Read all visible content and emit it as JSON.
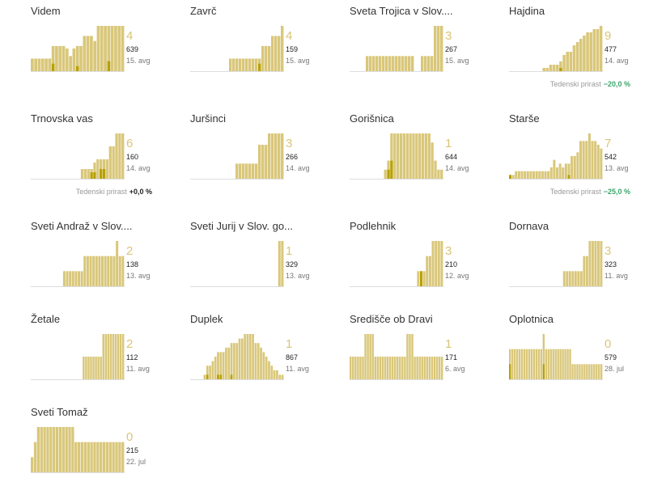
{
  "colors": {
    "bar": "#d9c77a",
    "barDark": "#b8a000",
    "axis": "#dddddd",
    "bigNumber": "#d9c57a",
    "negative": "#3aa66b"
  },
  "chart_data": [
    {
      "type": "bar",
      "title": "Videm",
      "new_cases": "4",
      "active": "639",
      "date": "15. avg",
      "values": [
        5,
        5,
        5,
        5,
        5,
        5,
        10,
        10,
        10,
        10,
        9,
        6,
        9,
        10,
        10,
        14,
        14,
        14,
        12,
        18,
        18,
        18,
        18,
        18,
        18,
        18,
        18
      ],
      "dark_values": [
        0,
        0,
        0,
        0,
        0,
        0,
        3,
        0,
        0,
        0,
        0,
        0,
        0,
        2,
        0,
        0,
        0,
        0,
        0,
        0,
        0,
        0,
        4,
        0,
        0,
        0,
        0
      ]
    },
    {
      "type": "bar",
      "title": "Zavrč",
      "new_cases": "4",
      "active": "159",
      "date": "15. avg",
      "values": [
        0,
        0,
        0,
        0,
        0,
        0,
        0,
        0,
        0,
        0,
        0,
        0,
        5,
        5,
        5,
        5,
        5,
        5,
        5,
        5,
        5,
        5,
        10,
        10,
        10,
        14,
        14,
        14,
        18
      ],
      "dark_values": [
        0,
        0,
        0,
        0,
        0,
        0,
        0,
        0,
        0,
        0,
        0,
        0,
        0,
        0,
        0,
        0,
        0,
        0,
        0,
        0,
        0,
        3,
        0,
        0,
        0,
        0,
        0,
        0,
        0
      ]
    },
    {
      "type": "bar",
      "title": "Sveta Trojica v Slov....",
      "new_cases": "3",
      "active": "267",
      "date": "15. avg",
      "values": [
        0,
        0,
        0,
        0,
        0,
        6,
        6,
        6,
        6,
        6,
        6,
        6,
        6,
        6,
        6,
        6,
        6,
        6,
        6,
        6,
        0,
        0,
        6,
        6,
        6,
        6,
        18,
        18,
        18
      ],
      "dark_values": [
        0,
        0,
        0,
        0,
        0,
        0,
        0,
        0,
        0,
        0,
        0,
        0,
        0,
        0,
        0,
        0,
        0,
        0,
        0,
        0,
        0,
        0,
        0,
        0,
        0,
        0,
        0,
        0,
        0
      ]
    },
    {
      "type": "bar",
      "title": "Hajdina",
      "new_cases": "9",
      "active": "477",
      "date": "14. avg",
      "growth_label": "Tedenski prirast",
      "growth": "−20,0 %",
      "growth_kind": "neg",
      "values": [
        0,
        0,
        0,
        0,
        0,
        0,
        0,
        0,
        0,
        0,
        1,
        1,
        2,
        2,
        2,
        3,
        5,
        6,
        6,
        8,
        9,
        10,
        11,
        12,
        12,
        13,
        13,
        14
      ],
      "dark_values": [
        0,
        0,
        0,
        0,
        0,
        0,
        0,
        0,
        0,
        0,
        0,
        0,
        0,
        0,
        0,
        1,
        0,
        0,
        0,
        0,
        0,
        0,
        0,
        0,
        0,
        0,
        0,
        0
      ]
    },
    {
      "type": "bar",
      "title": "Trnovska vas",
      "new_cases": "6",
      "active": "160",
      "date": "14. avg",
      "growth_label": "Tedenski prirast",
      "growth": "+0,0 %",
      "growth_kind": "zero",
      "values": [
        0,
        0,
        0,
        0,
        0,
        0,
        0,
        0,
        0,
        0,
        0,
        0,
        0,
        0,
        0,
        0,
        3,
        3,
        3,
        3,
        5,
        6,
        6,
        6,
        6,
        10,
        10,
        14,
        14,
        14
      ],
      "dark_values": [
        0,
        0,
        0,
        0,
        0,
        0,
        0,
        0,
        0,
        0,
        0,
        0,
        0,
        0,
        0,
        0,
        0,
        0,
        0,
        2,
        2,
        0,
        3,
        3,
        0,
        0,
        0,
        0,
        0,
        0
      ]
    },
    {
      "type": "bar",
      "title": "Juršinci",
      "new_cases": "3",
      "active": "266",
      "date": "14. avg",
      "values": [
        0,
        0,
        0,
        0,
        0,
        0,
        0,
        0,
        0,
        0,
        0,
        0,
        0,
        0,
        4,
        4,
        4,
        4,
        4,
        4,
        4,
        9,
        9,
        9,
        12,
        12,
        12,
        12,
        12
      ],
      "dark_values": [
        0,
        0,
        0,
        0,
        0,
        0,
        0,
        0,
        0,
        0,
        0,
        0,
        0,
        0,
        0,
        0,
        0,
        0,
        0,
        0,
        0,
        0,
        0,
        0,
        0,
        0,
        0,
        0,
        0
      ]
    },
    {
      "type": "bar",
      "title": "Gorišnica",
      "new_cases": "1",
      "active": "644",
      "date": "14. avg",
      "values": [
        0,
        0,
        0,
        0,
        0,
        0,
        0,
        0,
        0,
        0,
        0,
        2,
        4,
        10,
        10,
        10,
        10,
        10,
        10,
        10,
        10,
        10,
        10,
        10,
        10,
        10,
        8,
        4,
        2,
        2
      ],
      "dark_values": [
        0,
        0,
        0,
        0,
        0,
        0,
        0,
        0,
        0,
        0,
        0,
        0,
        2,
        4,
        0,
        0,
        0,
        0,
        0,
        0,
        0,
        0,
        0,
        0,
        0,
        0,
        0,
        0,
        0,
        0
      ]
    },
    {
      "type": "bar",
      "title": "Starše",
      "new_cases": "7",
      "active": "542",
      "date": "13. avg",
      "growth_label": "Tedenski prirast",
      "growth": "−25,0 %",
      "growth_kind": "neg",
      "values": [
        1,
        1,
        2,
        2,
        2,
        2,
        2,
        2,
        2,
        2,
        2,
        2,
        2,
        2,
        3,
        5,
        3,
        4,
        3,
        4,
        4,
        6,
        6,
        7,
        10,
        10,
        10,
        12,
        10,
        10,
        9,
        8
      ],
      "dark_values": [
        1,
        0,
        0,
        0,
        0,
        0,
        0,
        0,
        0,
        0,
        0,
        0,
        0,
        0,
        0,
        0,
        0,
        0,
        0,
        0,
        1,
        0,
        0,
        0,
        0,
        0,
        0,
        0,
        0,
        0,
        0,
        0
      ]
    },
    {
      "type": "bar",
      "title": "Sveti Andraž v Slov....",
      "new_cases": "2",
      "active": "138",
      "date": "13. avg",
      "values": [
        0,
        0,
        0,
        0,
        0,
        0,
        0,
        0,
        0,
        0,
        0,
        1,
        1,
        1,
        1,
        1,
        1,
        1,
        2,
        2,
        2,
        2,
        2,
        2,
        2,
        2,
        2,
        2,
        2,
        3,
        2,
        2
      ],
      "dark_values": [
        0,
        0,
        0,
        0,
        0,
        0,
        0,
        0,
        0,
        0,
        0,
        0,
        0,
        0,
        0,
        0,
        0,
        0,
        0,
        0,
        0,
        0,
        0,
        0,
        0,
        0,
        0,
        0,
        0,
        0,
        0,
        0
      ]
    },
    {
      "type": "bar",
      "title": "Sveti Jurij v Slov. go...",
      "new_cases": "1",
      "active": "329",
      "date": "13. avg",
      "values": [
        0,
        0,
        0,
        0,
        0,
        0,
        0,
        0,
        0,
        0,
        0,
        0,
        0,
        0,
        0,
        0,
        0,
        0,
        0,
        0,
        0,
        0,
        0,
        0,
        0,
        0,
        0,
        0,
        0,
        0,
        1,
        1
      ],
      "dark_values": [
        0,
        0,
        0,
        0,
        0,
        0,
        0,
        0,
        0,
        0,
        0,
        0,
        0,
        0,
        0,
        0,
        0,
        0,
        0,
        0,
        0,
        0,
        0,
        0,
        0,
        0,
        0,
        0,
        0,
        0,
        0,
        0
      ]
    },
    {
      "type": "bar",
      "title": "Podlehnik",
      "new_cases": "3",
      "active": "210",
      "date": "12. avg",
      "values": [
        0,
        0,
        0,
        0,
        0,
        0,
        0,
        0,
        0,
        0,
        0,
        0,
        0,
        0,
        0,
        0,
        0,
        0,
        0,
        0,
        0,
        0,
        0,
        1,
        1,
        1,
        2,
        2,
        3,
        3,
        3,
        3
      ],
      "dark_values": [
        0,
        0,
        0,
        0,
        0,
        0,
        0,
        0,
        0,
        0,
        0,
        0,
        0,
        0,
        0,
        0,
        0,
        0,
        0,
        0,
        0,
        0,
        0,
        0,
        1,
        0,
        0,
        0,
        0,
        0,
        0,
        0
      ]
    },
    {
      "type": "bar",
      "title": "Dornava",
      "new_cases": "3",
      "active": "323",
      "date": "11. avg",
      "values": [
        0,
        0,
        0,
        0,
        0,
        0,
        0,
        0,
        0,
        0,
        0,
        0,
        0,
        0,
        0,
        0,
        0,
        0,
        0,
        1,
        1,
        1,
        1,
        1,
        1,
        1,
        2,
        2,
        3,
        3,
        3,
        3,
        3
      ],
      "dark_values": [
        0,
        0,
        0,
        0,
        0,
        0,
        0,
        0,
        0,
        0,
        0,
        0,
        0,
        0,
        0,
        0,
        0,
        0,
        0,
        0,
        0,
        0,
        0,
        0,
        0,
        0,
        0,
        0,
        0,
        0,
        0,
        0,
        0
      ]
    },
    {
      "type": "bar",
      "title": "Žetale",
      "new_cases": "2",
      "active": "112",
      "date": "11. avg",
      "values": [
        0,
        0,
        0,
        0,
        0,
        0,
        0,
        0,
        0,
        0,
        0,
        0,
        0,
        0,
        0,
        0,
        0,
        0,
        0,
        0,
        0,
        1,
        1,
        1,
        1,
        1,
        1,
        1,
        1,
        2,
        2,
        2,
        2,
        2,
        2,
        2,
        2,
        2
      ],
      "dark_values": [
        0,
        0,
        0,
        0,
        0,
        0,
        0,
        0,
        0,
        0,
        0,
        0,
        0,
        0,
        0,
        0,
        0,
        0,
        0,
        0,
        0,
        0,
        0,
        0,
        0,
        0,
        0,
        0,
        0,
        0,
        0,
        0,
        0,
        0,
        0,
        0,
        0,
        0
      ]
    },
    {
      "type": "bar",
      "title": "Duplek",
      "new_cases": "1",
      "active": "867",
      "date": "11. avg",
      "values": [
        0,
        0,
        0,
        0,
        0,
        1,
        3,
        3,
        4,
        5,
        6,
        6,
        6,
        7,
        7,
        8,
        8,
        8,
        9,
        9,
        10,
        10,
        10,
        10,
        8,
        8,
        7,
        6,
        5,
        4,
        3,
        2,
        2,
        1,
        1
      ],
      "dark_values": [
        0,
        0,
        0,
        0,
        0,
        0,
        1,
        0,
        0,
        0,
        1,
        1,
        0,
        0,
        0,
        1,
        0,
        0,
        0,
        0,
        0,
        0,
        0,
        0,
        0,
        0,
        0,
        0,
        0,
        0,
        0,
        0,
        0,
        0,
        0
      ]
    },
    {
      "type": "bar",
      "title": "Središče ob Dravi",
      "new_cases": "1",
      "active": "171",
      "date": "6. avg",
      "values": [
        2,
        2,
        2,
        2,
        2,
        2,
        4,
        4,
        4,
        4,
        2,
        2,
        2,
        2,
        2,
        2,
        2,
        2,
        2,
        2,
        2,
        2,
        2,
        4,
        4,
        4,
        2,
        2,
        2,
        2,
        2,
        2,
        2,
        2,
        2,
        2,
        2,
        2
      ],
      "dark_values": [
        0,
        0,
        0,
        0,
        0,
        0,
        0,
        0,
        0,
        0,
        0,
        0,
        0,
        0,
        0,
        0,
        0,
        0,
        0,
        0,
        0,
        0,
        0,
        0,
        0,
        0,
        0,
        0,
        0,
        0,
        0,
        0,
        0,
        0,
        0,
        0,
        0,
        0
      ]
    },
    {
      "type": "bar",
      "title": "Oplotnica",
      "new_cases": "0",
      "active": "579",
      "date": "28. jul",
      "values": [
        6,
        6,
        6,
        6,
        6,
        6,
        6,
        6,
        6,
        6,
        6,
        6,
        6,
        6,
        9,
        6,
        6,
        6,
        6,
        6,
        6,
        6,
        6,
        6,
        6,
        6,
        3,
        3,
        3,
        3,
        3,
        3,
        3,
        3,
        3,
        3,
        3,
        3,
        3
      ],
      "dark_values": [
        3,
        0,
        0,
        0,
        0,
        0,
        0,
        0,
        0,
        0,
        0,
        0,
        0,
        0,
        3,
        0,
        0,
        0,
        0,
        0,
        0,
        0,
        0,
        0,
        0,
        0,
        0,
        0,
        0,
        0,
        0,
        0,
        0,
        0,
        0,
        0,
        0,
        0,
        0
      ]
    },
    {
      "type": "bar",
      "title": "Sveti Tomaž",
      "new_cases": "0",
      "active": "215",
      "date": "22. jul",
      "values": [
        3,
        6,
        9,
        9,
        9,
        9,
        9,
        9,
        9,
        9,
        9,
        9,
        9,
        9,
        6,
        6,
        6,
        6,
        6,
        6,
        6,
        6,
        6,
        6,
        6,
        6,
        6,
        6,
        6,
        6
      ],
      "dark_values": [
        0,
        0,
        0,
        0,
        0,
        0,
        0,
        0,
        0,
        0,
        0,
        0,
        0,
        0,
        0,
        0,
        0,
        0,
        0,
        0,
        0,
        0,
        0,
        0,
        0,
        0,
        0,
        0,
        0,
        0
      ]
    }
  ]
}
